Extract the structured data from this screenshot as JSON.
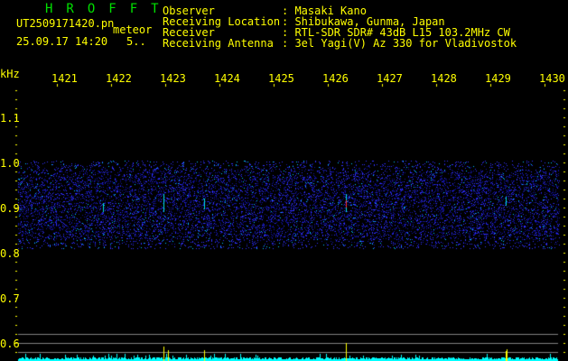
{
  "header": {
    "app_title": "HROFFT",
    "filename": "UT2509171420.pn",
    "mode": "meteor",
    "datetime": "25.09.17 14:20",
    "value": "5..",
    "info": [
      {
        "label": "Observer",
        "value": ": Masaki Kano"
      },
      {
        "label": "Receiving Location",
        "value": ": Shibukawa, Gunma, Japan"
      },
      {
        "label": "Receiver",
        "value": ": RTL-SDR SDR# 43dB L15 103.2MHz CW"
      },
      {
        "label": "Receiving Antenna",
        "value": ": 3el Yagi(V) Az 330 for Vladivostok"
      }
    ]
  },
  "axis": {
    "unit": "kHz",
    "freq_labels": [
      "1421",
      "1422",
      "1423",
      "1424",
      "1425",
      "1426",
      "1427",
      "1428",
      "1429",
      "1430"
    ],
    "y_labels": [
      "1.1",
      "1.0",
      "0.9",
      "0.8",
      "0.7",
      "0.6"
    ]
  },
  "colors": {
    "text": "#ffff00",
    "title": "#00e000",
    "noise": "#2020ff",
    "baseline": "#00ffff",
    "grid": "#808080"
  }
}
